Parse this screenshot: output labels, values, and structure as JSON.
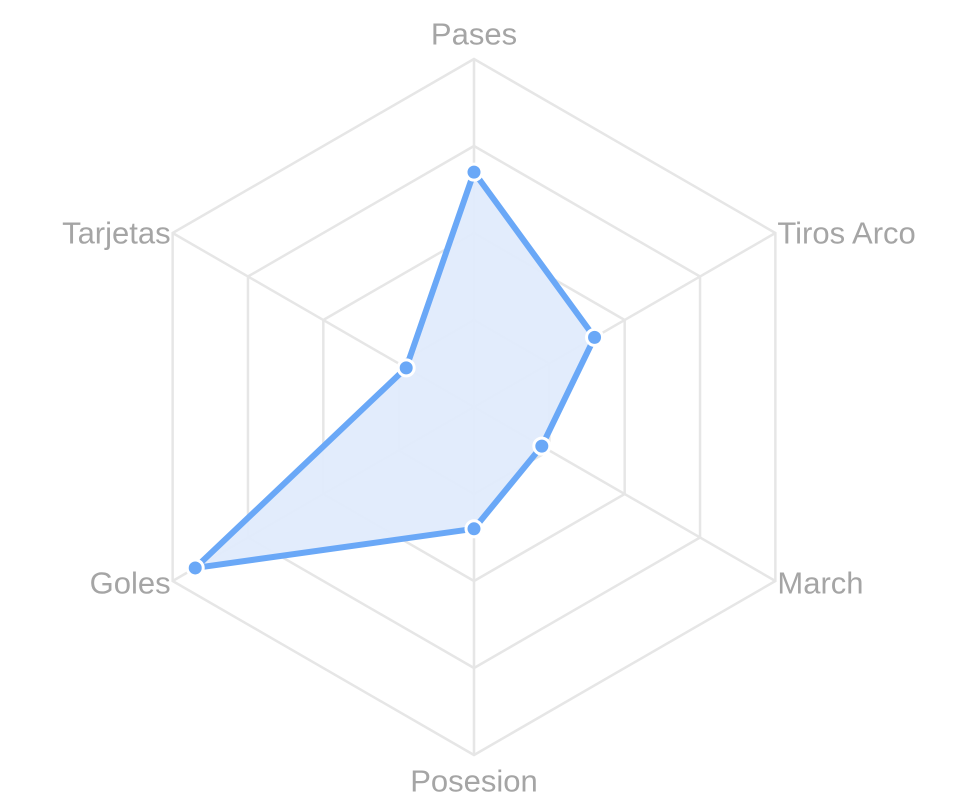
{
  "chart_data": {
    "type": "radar",
    "axes": [
      "Pases",
      "Tiros Arco",
      "March",
      "Posesion",
      "Goles",
      "Tarjetas"
    ],
    "series": [
      {
        "values": [
          2.7,
          1.6,
          0.9,
          1.4,
          3.7,
          0.9
        ],
        "color": "#6aa8f7",
        "fill": "#e0ebfc"
      }
    ],
    "scale_max": 4,
    "grid_levels": 4,
    "grid_color": "#e6e6e6",
    "label_color": "#a5a5a5",
    "legend": "none"
  }
}
